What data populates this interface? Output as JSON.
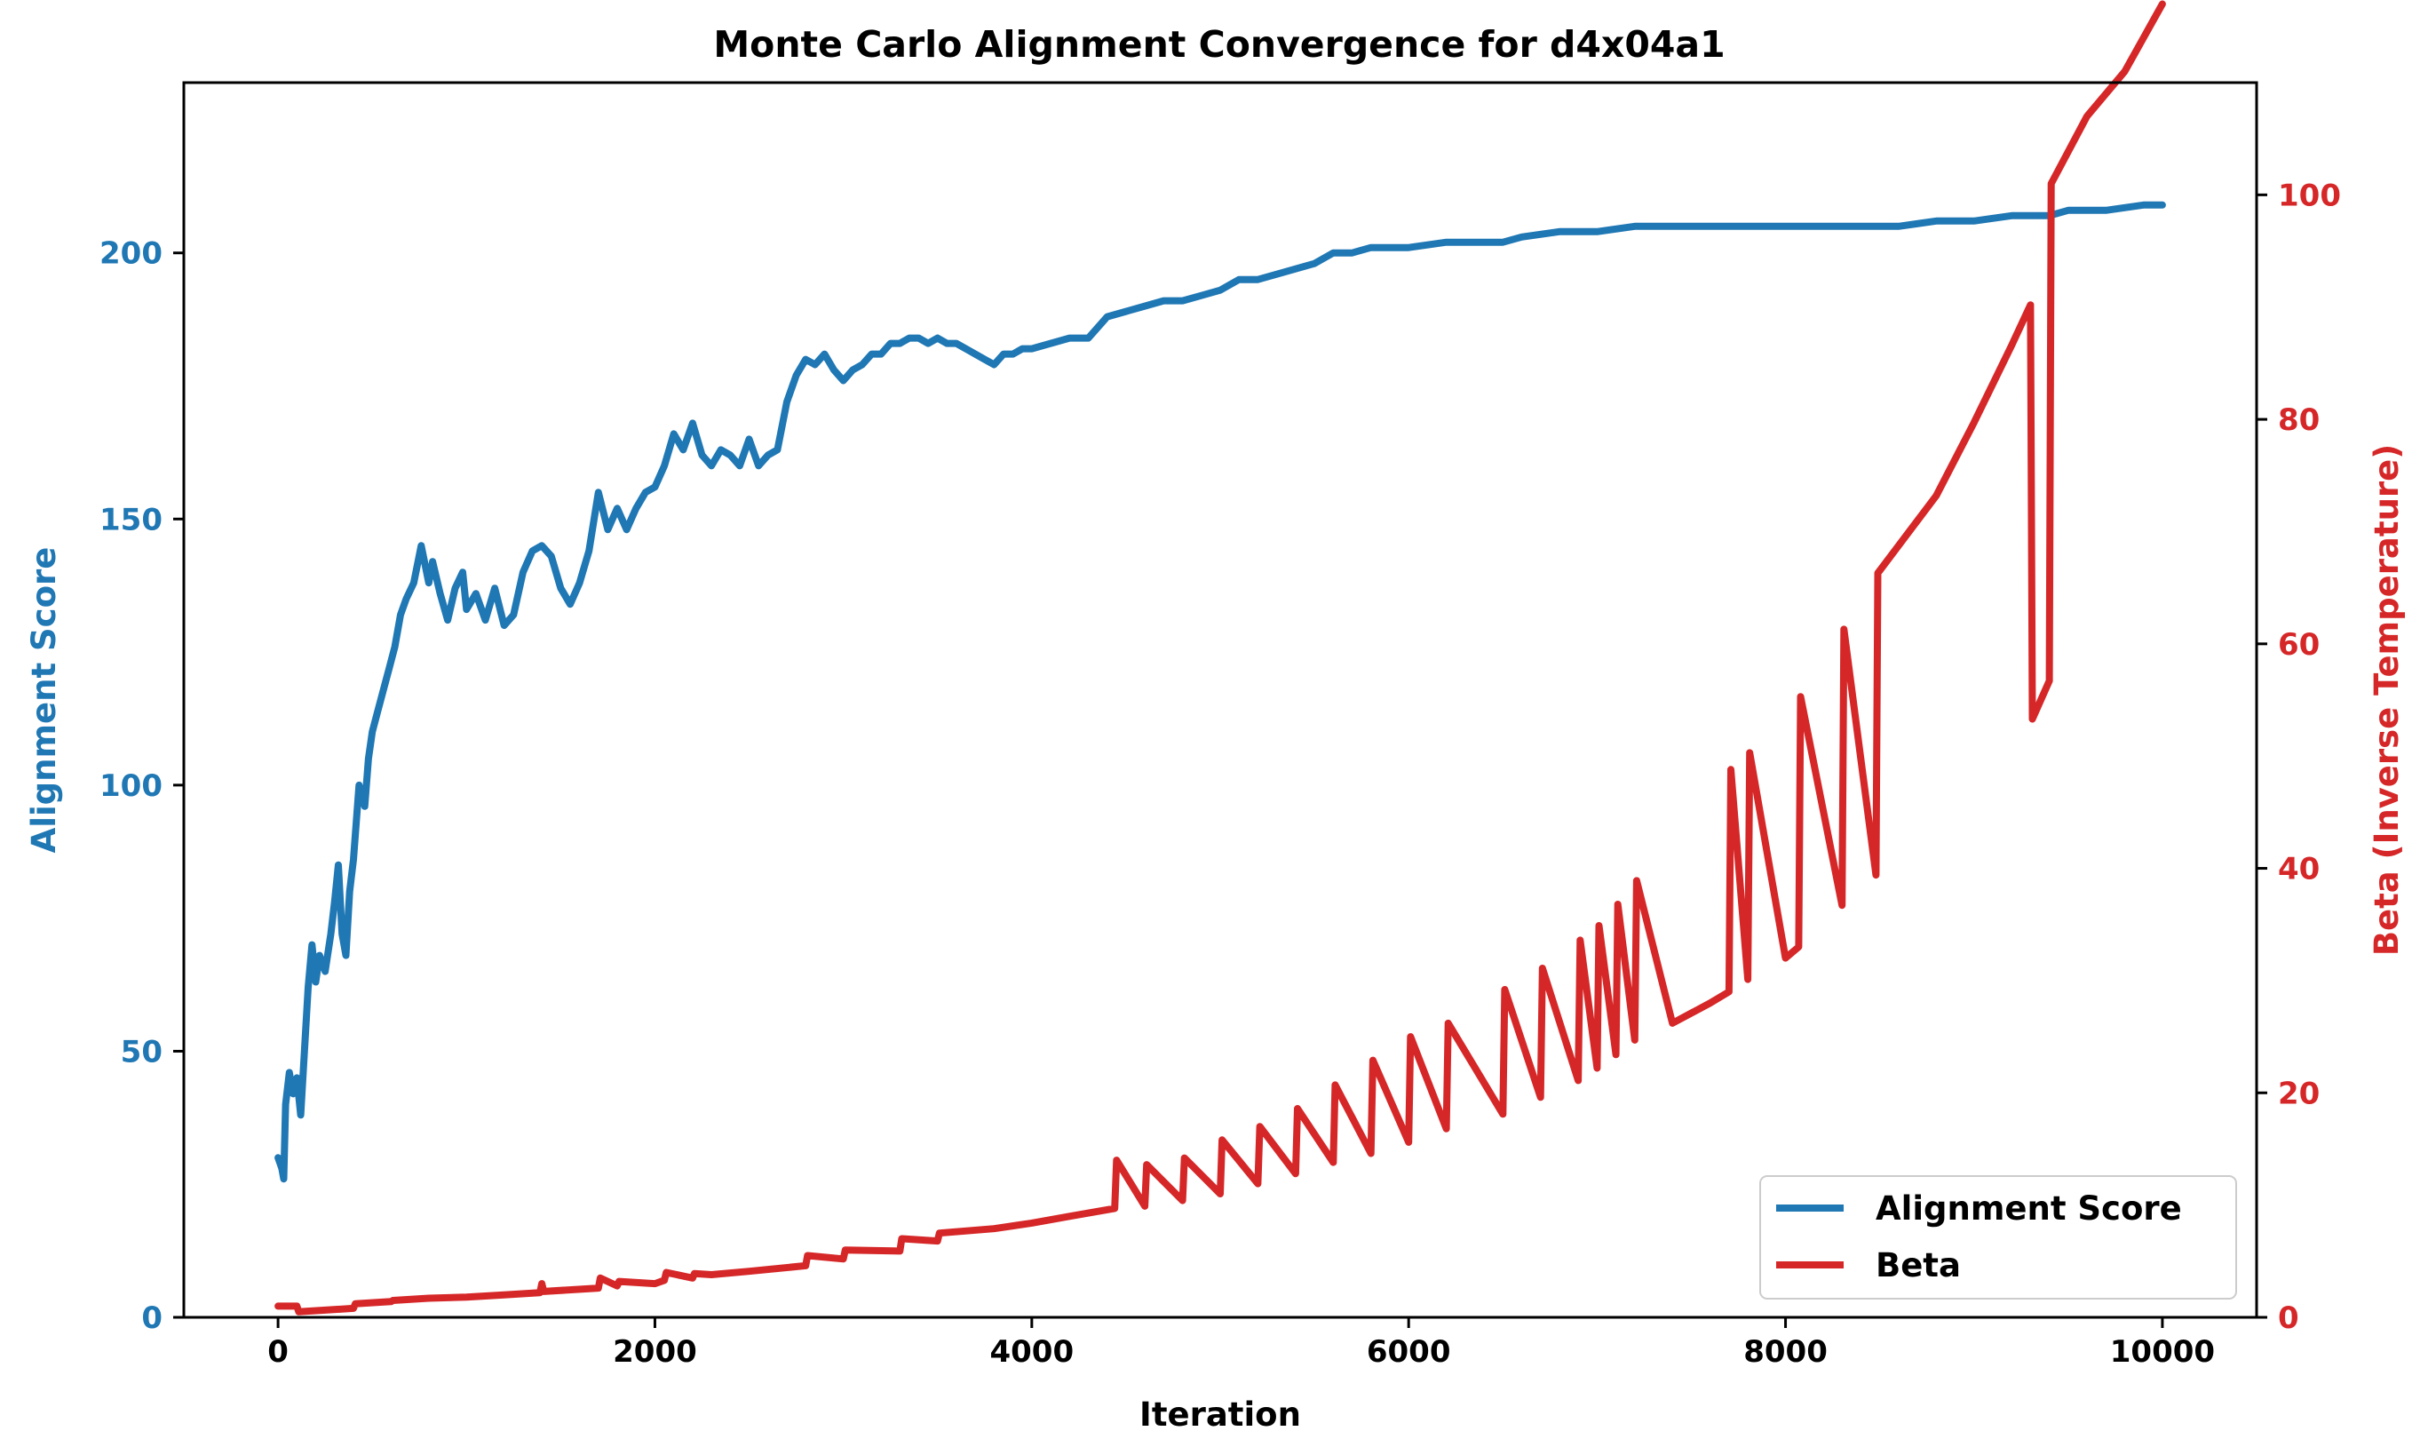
{
  "chart_data": {
    "type": "line",
    "title": "Monte Carlo Alignment Convergence for d4x04a1",
    "xlabel": "Iteration",
    "ylabel_left": "Alignment Score",
    "ylabel_right": "Beta (Inverse Temperature)",
    "xlim": [
      -500,
      10500
    ],
    "ylim_left": [
      0,
      232
    ],
    "ylim_right": [
      0,
      110
    ],
    "x_ticks": [
      0,
      2000,
      4000,
      6000,
      8000,
      10000
    ],
    "y_ticks_left": [
      0,
      50,
      100,
      150,
      200
    ],
    "y_ticks_right": [
      0,
      20,
      40,
      60,
      80,
      100
    ],
    "legend_position": "lower right",
    "colors": {
      "score": "#1f77b4",
      "beta": "#d62728"
    },
    "series": [
      {
        "name": "Alignment Score",
        "axis": "left",
        "color": "#1f77b4",
        "x": [
          0,
          20,
          30,
          40,
          60,
          80,
          100,
          120,
          140,
          160,
          180,
          200,
          220,
          250,
          280,
          300,
          320,
          340,
          360,
          380,
          400,
          430,
          460,
          480,
          500,
          530,
          560,
          590,
          620,
          650,
          680,
          720,
          760,
          800,
          820,
          860,
          900,
          940,
          980,
          1000,
          1050,
          1100,
          1150,
          1200,
          1250,
          1300,
          1350,
          1400,
          1450,
          1500,
          1550,
          1600,
          1650,
          1700,
          1750,
          1800,
          1850,
          1900,
          1950,
          2000,
          2050,
          2100,
          2150,
          2200,
          2250,
          2300,
          2350,
          2400,
          2450,
          2500,
          2550,
          2600,
          2650,
          2700,
          2750,
          2800,
          2850,
          2900,
          2950,
          3000,
          3050,
          3100,
          3150,
          3200,
          3250,
          3300,
          3350,
          3400,
          3450,
          3500,
          3550,
          3600,
          3650,
          3700,
          3750,
          3800,
          3850,
          3900,
          3950,
          4000,
          4100,
          4200,
          4300,
          4400,
          4500,
          4600,
          4700,
          4800,
          4900,
          5000,
          5100,
          5200,
          5300,
          5400,
          5500,
          5600,
          5700,
          5800,
          5900,
          6000,
          6200,
          6400,
          6500,
          6600,
          6800,
          7000,
          7200,
          7400,
          7600,
          7800,
          8000,
          8200,
          8400,
          8600,
          8800,
          9000,
          9200,
          9400,
          9500,
          9700,
          9900,
          10000
        ],
        "values": [
          30,
          28,
          26,
          40,
          46,
          42,
          45,
          38,
          50,
          62,
          70,
          63,
          68,
          65,
          72,
          78,
          85,
          72,
          68,
          80,
          86,
          100,
          96,
          105,
          110,
          114,
          118,
          122,
          126,
          132,
          135,
          138,
          145,
          138,
          142,
          136,
          131,
          137,
          140,
          133,
          136,
          131,
          137,
          130,
          132,
          140,
          144,
          145,
          143,
          137,
          134,
          138,
          144,
          155,
          148,
          152,
          148,
          152,
          155,
          156,
          160,
          166,
          163,
          168,
          162,
          160,
          163,
          162,
          160,
          165,
          160,
          162,
          163,
          172,
          177,
          180,
          179,
          181,
          178,
          176,
          178,
          179,
          181,
          181,
          183,
          183,
          184,
          184,
          183,
          184,
          183,
          183,
          182,
          181,
          180,
          179,
          181,
          181,
          182,
          182,
          183,
          184,
          184,
          188,
          189,
          190,
          191,
          191,
          192,
          193,
          195,
          195,
          196,
          197,
          198,
          200,
          200,
          201,
          201,
          201,
          202,
          202,
          202,
          203,
          204,
          204,
          205,
          205,
          205,
          205,
          205,
          205,
          205,
          205,
          206,
          206,
          207,
          207,
          208,
          208,
          209,
          209
        ]
      },
      {
        "name": "Beta",
        "axis": "right",
        "color": "#d62728",
        "x": [
          0,
          100,
          110,
          400,
          410,
          600,
          610,
          800,
          1000,
          1200,
          1390,
          1400,
          1410,
          1700,
          1710,
          1800,
          1810,
          2000,
          2050,
          2060,
          2200,
          2210,
          2300,
          2500,
          2800,
          2810,
          3000,
          3010,
          3300,
          3310,
          3500,
          3510,
          3800,
          4000,
          4200,
          4440,
          4450,
          4600,
          4610,
          4800,
          4810,
          5000,
          5010,
          5200,
          5210,
          5400,
          5410,
          5600,
          5610,
          5800,
          5810,
          6000,
          6010,
          6200,
          6210,
          6500,
          6510,
          6700,
          6710,
          6900,
          6910,
          7000,
          7010,
          7100,
          7110,
          7200,
          7210,
          7400,
          7600,
          7700,
          7710,
          7800,
          7810,
          8000,
          8070,
          8080,
          8300,
          8310,
          8480,
          8490,
          8800,
          9000,
          9200,
          9300,
          9310,
          9400,
          9410,
          9600,
          9800,
          10000
        ],
        "values": [
          1,
          1,
          0.5,
          0.8,
          1.2,
          1.4,
          1.5,
          1.7,
          1.8,
          2.0,
          2.2,
          3.0,
          2.3,
          2.6,
          3.5,
          2.8,
          3.2,
          3.0,
          3.3,
          4.0,
          3.5,
          3.9,
          3.8,
          4.1,
          4.6,
          5.5,
          5.2,
          6.0,
          5.9,
          7.0,
          6.8,
          7.5,
          7.9,
          8.4,
          9.0,
          9.7,
          14.0,
          9.9,
          13.6,
          10.4,
          14.2,
          11.0,
          15.8,
          11.9,
          17.0,
          12.8,
          18.6,
          13.8,
          20.7,
          14.6,
          22.9,
          15.6,
          25.0,
          16.8,
          26.2,
          18.1,
          29.2,
          19.6,
          31.1,
          21.1,
          33.6,
          22.2,
          34.9,
          23.4,
          36.8,
          24.7,
          38.9,
          26.2,
          28.0,
          29.0,
          48.8,
          30.1,
          50.3,
          32.0,
          33.0,
          55.3,
          36.7,
          61.3,
          39.4,
          66.3,
          73.2,
          79.7,
          86.6,
          90.2,
          53.3,
          56.7,
          101.0,
          107.0,
          111.0,
          117.0
        ]
      }
    ]
  }
}
